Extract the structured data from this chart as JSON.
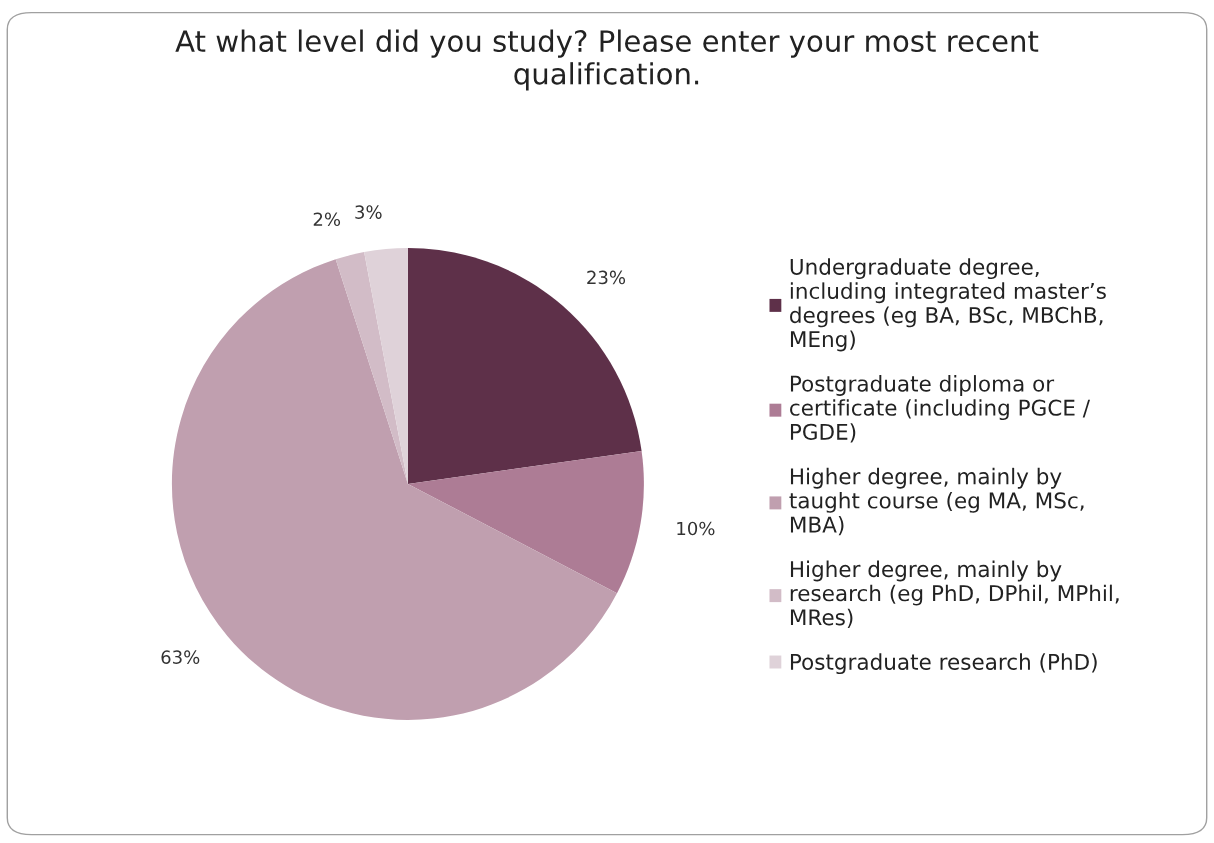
{
  "chart_data": {
    "type": "pie",
    "title": "At what level did you study? Please enter your most recent\nqualification.",
    "categories": [
      "Undergraduate degree,\nincluding integrated master’s\ndegrees (eg BA, BSc, MBChB,\nMEng)",
      "Postgraduate diploma or\ncertificate (including PGCE /\nPGDE)",
      "Higher degree, mainly by\ntaught course (eg MA, MSc,\nMBA)",
      "Higher degree, mainly by\nresearch (eg PhD, DPhil, MPhil,\nMRes)",
      "Postgraduate research (PhD)"
    ],
    "values": [
      23,
      10,
      63,
      2,
      3
    ],
    "colors": [
      "#5e3049",
      "#ad7c95",
      "#c09faf",
      "#d2bcc7",
      "#dfd2d9"
    ],
    "value_labels": [
      "23%",
      "10%",
      "63%",
      "2%",
      "3%"
    ],
    "legend": "right"
  }
}
